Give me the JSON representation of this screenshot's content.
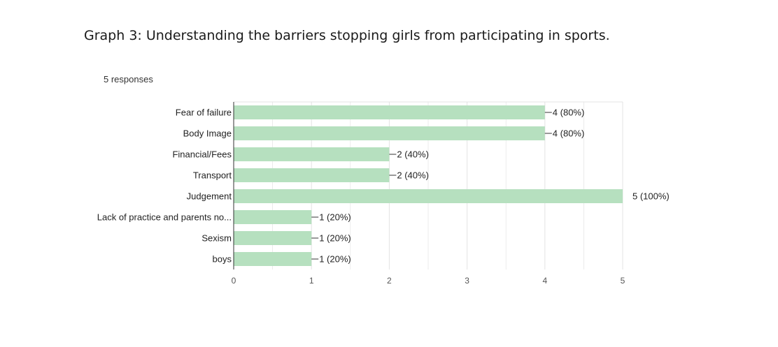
{
  "page": {
    "title": "Graph 3:  Understanding the barriers stopping girls from participating in sports.",
    "responses": "5 responses"
  },
  "colors": {
    "bar": "#b6e0bf",
    "grid": "#e3e3e3",
    "axis": "#333333",
    "label_text": "#222222",
    "tick_text": "#555555"
  },
  "chart_data": {
    "type": "bar",
    "orientation": "horizontal",
    "categories": [
      "Fear of failure",
      "Body Image",
      "Financial/Fees",
      "Transport",
      "Judgement",
      "Lack of practice and parents no...",
      "Sexism",
      "boys"
    ],
    "values": [
      4,
      4,
      2,
      2,
      5,
      1,
      1,
      1
    ],
    "data_labels": [
      "4 (80%)",
      "4 (80%)",
      "2 (40%)",
      "2 (40%)",
      "5 (100%)",
      "1 (20%)",
      "1 (20%)",
      "1 (20%)"
    ],
    "xlim": [
      0,
      5
    ],
    "x_ticks": [
      "0",
      "1",
      "2",
      "3",
      "4",
      "5"
    ],
    "grid": true
  }
}
